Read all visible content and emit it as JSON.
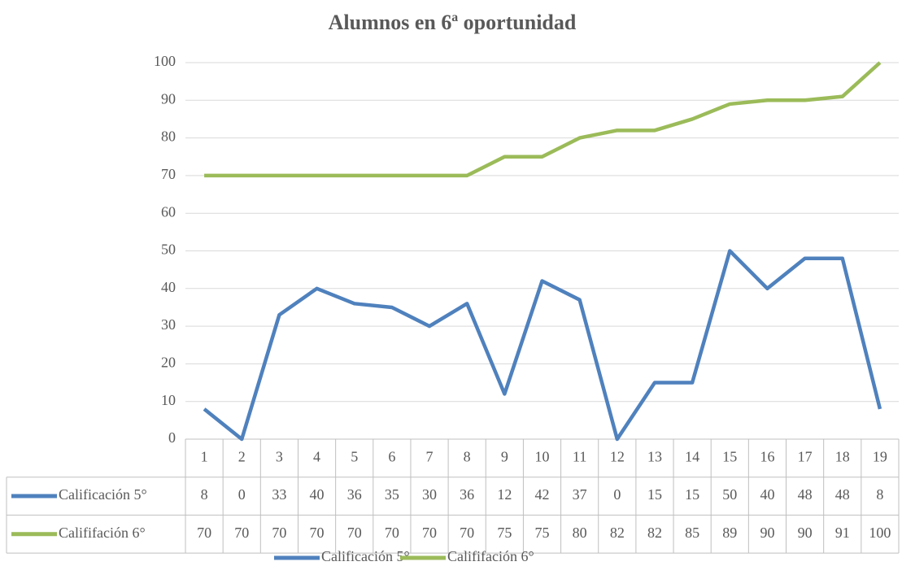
{
  "chart_data": {
    "type": "line",
    "title": "Alumnos en 6ª oportunidad",
    "categories": [
      "1",
      "2",
      "3",
      "4",
      "5",
      "6",
      "7",
      "8",
      "9",
      "10",
      "11",
      "12",
      "13",
      "14",
      "15",
      "16",
      "17",
      "18",
      "19"
    ],
    "series": [
      {
        "name": "Calificación 5°",
        "color": "#4f81bd",
        "values": [
          8,
          0,
          33,
          40,
          36,
          35,
          30,
          36,
          12,
          42,
          37,
          0,
          15,
          15,
          50,
          40,
          48,
          48,
          8
        ]
      },
      {
        "name": "Calififación 6°",
        "color": "#9bbb59",
        "values": [
          70,
          70,
          70,
          70,
          70,
          70,
          70,
          70,
          75,
          75,
          80,
          82,
          82,
          85,
          89,
          90,
          90,
          91,
          100
        ]
      }
    ],
    "ylim": [
      0,
      100
    ],
    "yticks": [
      0,
      10,
      20,
      30,
      40,
      50,
      60,
      70,
      80,
      90,
      100
    ],
    "grid": true,
    "legend": "bottom"
  }
}
